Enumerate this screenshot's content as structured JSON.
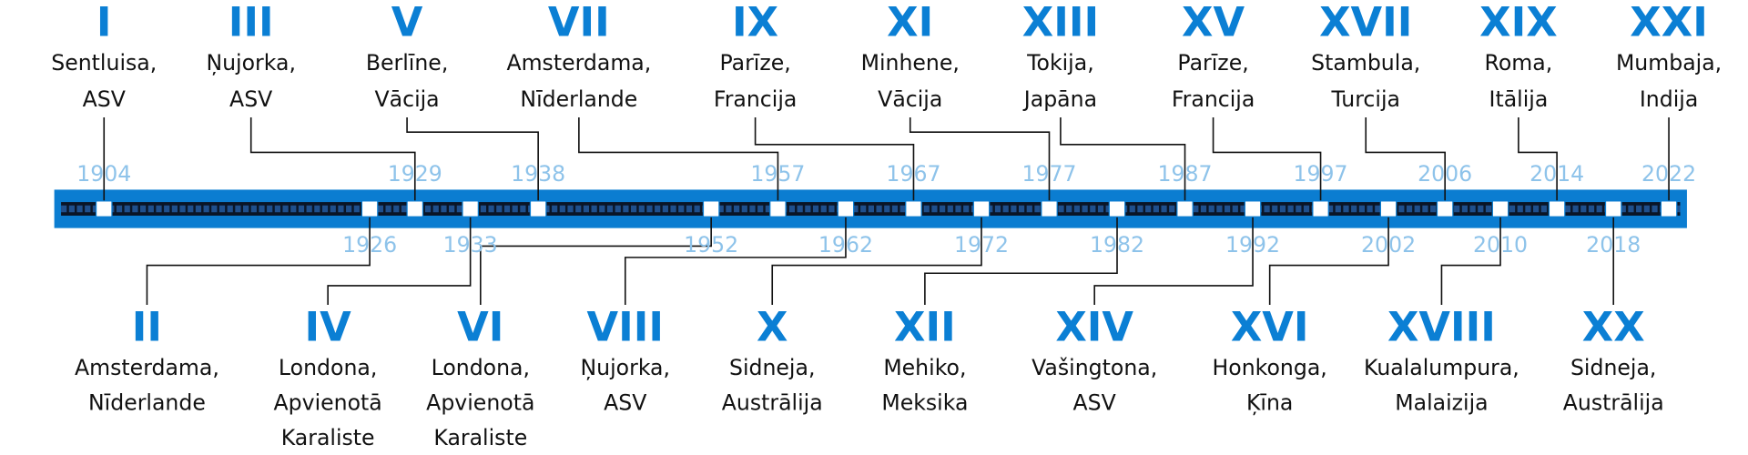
{
  "top": [
    {
      "numeral": "I",
      "place": [
        "Sentluisa,",
        "ASV"
      ],
      "year": "1904"
    },
    {
      "numeral": "III",
      "place": [
        "Ņujorka,",
        "ASV"
      ],
      "year": "1929"
    },
    {
      "numeral": "V",
      "place": [
        "Berlīne,",
        "Vācija"
      ],
      "year": "1938"
    },
    {
      "numeral": "VII",
      "place": [
        "Amsterdama,",
        "Nīderlande"
      ],
      "year": "1957"
    },
    {
      "numeral": "IX",
      "place": [
        "Parīze,",
        "Francija"
      ],
      "year": "1967"
    },
    {
      "numeral": "XI",
      "place": [
        "Minhene,",
        "Vācija"
      ],
      "year": "1977"
    },
    {
      "numeral": "XIII",
      "place": [
        "Tokija,",
        "Japāna"
      ],
      "year": "1987"
    },
    {
      "numeral": "XV",
      "place": [
        "Parīze,",
        "Francija"
      ],
      "year": "1997"
    },
    {
      "numeral": "XVII",
      "place": [
        "Stambula,",
        "Turcija"
      ],
      "year": "2006"
    },
    {
      "numeral": "XIX",
      "place": [
        "Roma,",
        "Itālija"
      ],
      "year": "2014"
    },
    {
      "numeral": "XXI",
      "place": [
        "Mumbaja,",
        "Indija"
      ],
      "year": "2022"
    }
  ],
  "bottom": [
    {
      "numeral": "II",
      "place": [
        "Amsterdama,",
        "Nīderlande"
      ],
      "year": "1926"
    },
    {
      "numeral": "IV",
      "place": [
        "Londona,",
        "Apvienotā",
        "Karaliste"
      ],
      "year": "1933"
    },
    {
      "numeral": "VI",
      "place": [
        "Londona,",
        "Apvienotā",
        "Karaliste"
      ],
      "year": "1952"
    },
    {
      "numeral": "VIII",
      "place": [
        "Ņujorka,",
        "ASV"
      ],
      "year": "1962"
    },
    {
      "numeral": "X",
      "place": [
        "Sidneja,",
        "Austrālija"
      ],
      "year": "1972"
    },
    {
      "numeral": "XII",
      "place": [
        "Mehiko,",
        "Meksika"
      ],
      "year": "1982"
    },
    {
      "numeral": "XIV",
      "place": [
        "Vašingtona,",
        "ASV"
      ],
      "year": "1992"
    },
    {
      "numeral": "XVI",
      "place": [
        "Honkonga,",
        "Ķīna"
      ],
      "year": "2002"
    },
    {
      "numeral": "XVIII",
      "place": [
        "Kualalumpura,",
        "Malaizija"
      ],
      "year": "2010"
    },
    {
      "numeral": "XX",
      "place": [
        "Sidneja,",
        "Austrālija"
      ],
      "year": "2018"
    }
  ]
}
